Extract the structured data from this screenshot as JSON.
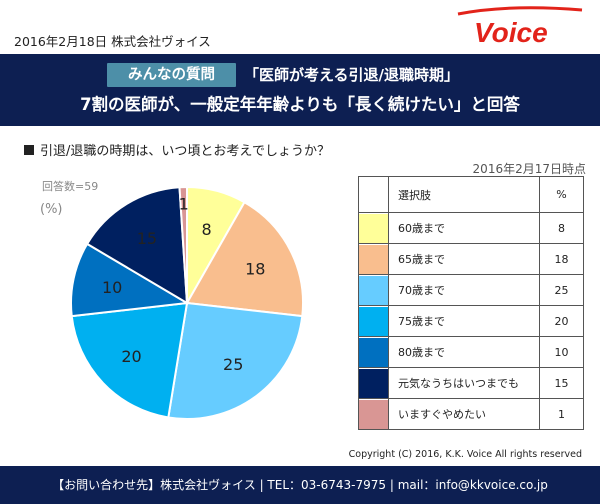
{
  "header": {
    "date_company": "2016年2月18日  株式会社ヴォイス",
    "logo_text": "Voice",
    "badge": "みんなの質問",
    "title": "「医師が考える引退/退職時期」",
    "headline": "7割の医師が、一般定年年齢よりも「長く続けたい」と回答"
  },
  "question": "引退/退職の時期は、いつ頃とお考えでしょうか？",
  "as_of": "2016年2月17日時点",
  "respondents": "回答数=59",
  "unit": "(%)",
  "table": {
    "col_choice": "選択肢",
    "col_percent": "%"
  },
  "chart_data": {
    "type": "pie",
    "title": "",
    "start": "12 o'clock, clockwise",
    "slices": [
      {
        "label": "60歳まで",
        "value": 8,
        "color": "#ffff99"
      },
      {
        "label": "65歳まで",
        "value": 18,
        "color": "#f9be8e"
      },
      {
        "label": "70歳まで",
        "value": 25,
        "color": "#66ccff"
      },
      {
        "label": "75歳まで",
        "value": 20,
        "color": "#00b0f0"
      },
      {
        "label": "80歳まで",
        "value": 10,
        "color": "#0070c0"
      },
      {
        "label": "元気なうちはいつまでも",
        "value": 15,
        "color": "#002060"
      },
      {
        "label": "いますぐやめたい",
        "value": 1,
        "color": "#d99694"
      }
    ]
  },
  "copyright": "Copyright  (C) 2016, K.K. Voice All rights reserved",
  "footer": "【お問い合わせ先】株式会社ヴォイス | TEL：03-6743-7975 | mail：info@kkvoice.co.jp"
}
